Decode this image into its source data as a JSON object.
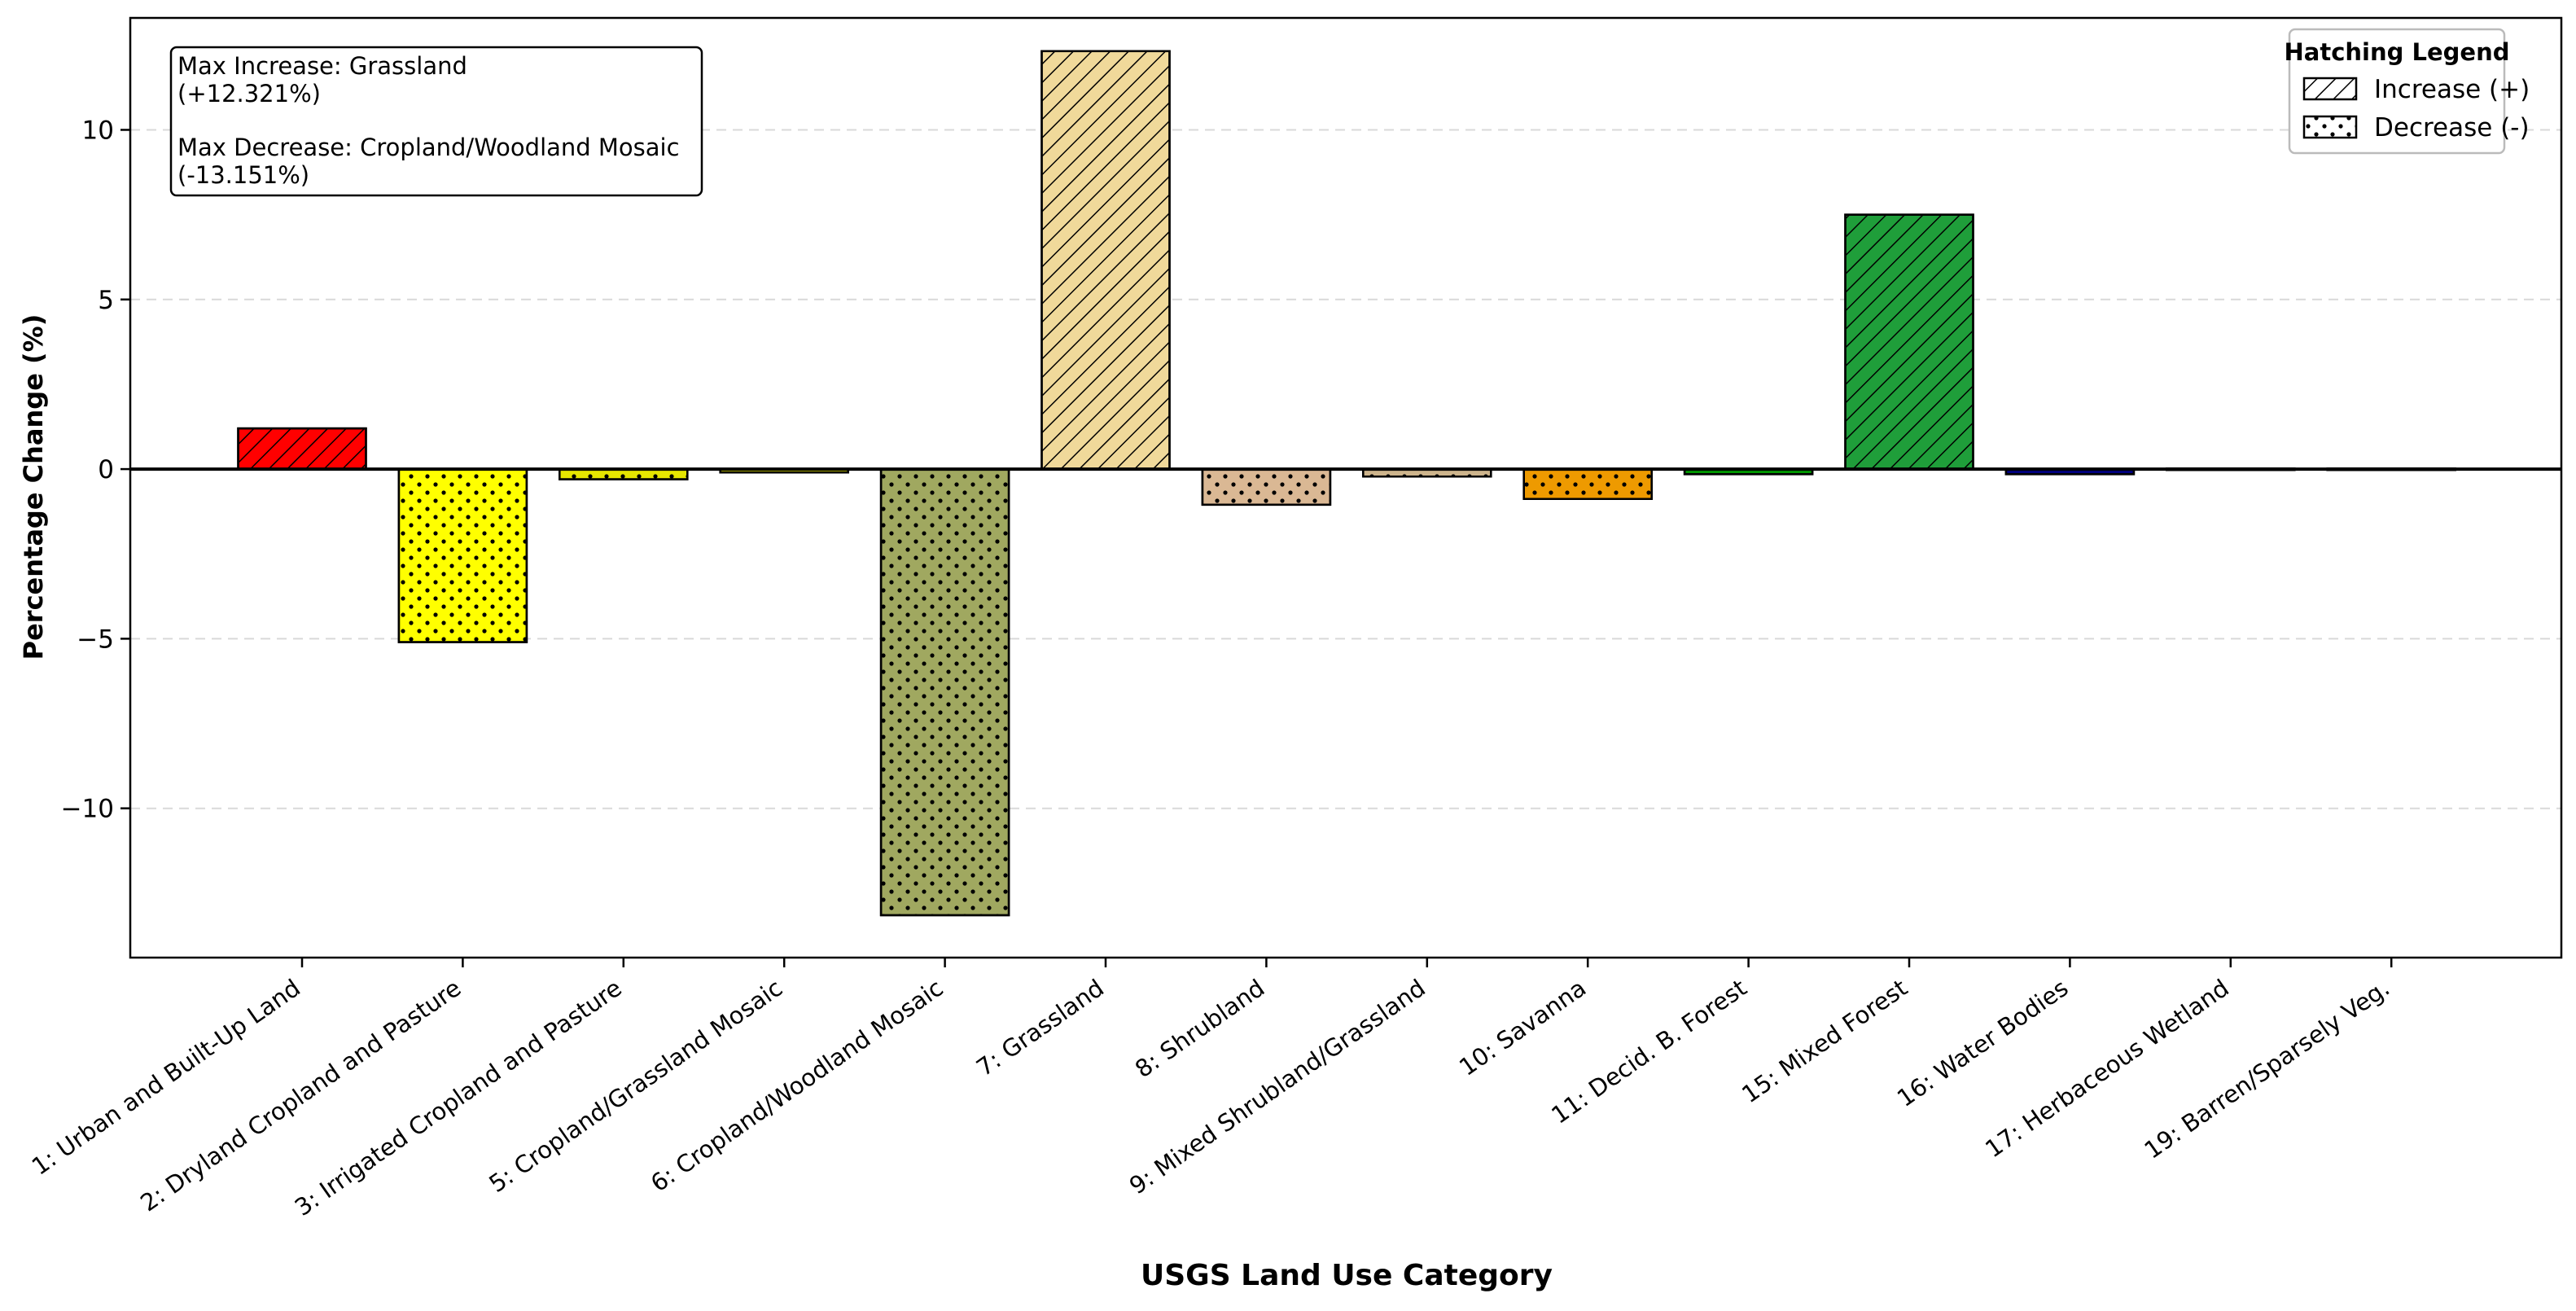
{
  "chart_data": {
    "type": "bar",
    "xlabel": "USGS Land Use Category",
    "ylabel": "Percentage Change (%)",
    "ylim": [
      -14.4,
      13.3
    ],
    "yticks": [
      10,
      5,
      0,
      -5,
      -10
    ],
    "ytick_labels": [
      "10",
      "5",
      "0",
      "−5",
      "−10"
    ],
    "grid": "horizontal dashed",
    "categories": [
      "1: Urban and Built-Up Land",
      "2: Dryland Cropland and Pasture",
      "3: Irrigated Cropland and Pasture",
      "5: Cropland/Grassland Mosaic",
      "6: Cropland/Woodland Mosaic",
      "7: Grassland",
      "8: Shrubland",
      "9: Mixed Shrubland/Grassland",
      "10: Savanna",
      "11: Decid. B. Forest",
      "15: Mixed Forest",
      "16: Water Bodies",
      "17: Herbaceous Wetland",
      "19: Barren/Sparsely Veg."
    ],
    "values": [
      1.2,
      -5.1,
      -0.3,
      -0.1,
      -13.151,
      12.321,
      -1.05,
      -0.22,
      -0.88,
      -0.15,
      7.5,
      -0.15,
      0.02,
      0.02
    ],
    "colors": [
      "#ff0000",
      "#ffff00",
      "#e6e600",
      "#b8b800",
      "#a0a860",
      "#f0d99a",
      "#dab894",
      "#cdb48c",
      "#ee9a00",
      "#009900",
      "#1f9e3a",
      "#000080",
      "#6fa8dc",
      "#bdbdbd"
    ],
    "annotation": {
      "lines": [
        "Max Increase: Grassland",
        "(+12.321%)",
        "",
        "Max Decrease: Cropland/Woodland Mosaic",
        "(-13.151%)"
      ]
    },
    "legend": {
      "title": "Hatching Legend",
      "placement": "top-right",
      "entries": [
        {
          "label": "Increase (+)",
          "pattern": "diagonal-hatch"
        },
        {
          "label": "Decrease (-)",
          "pattern": "dots"
        }
      ]
    }
  }
}
